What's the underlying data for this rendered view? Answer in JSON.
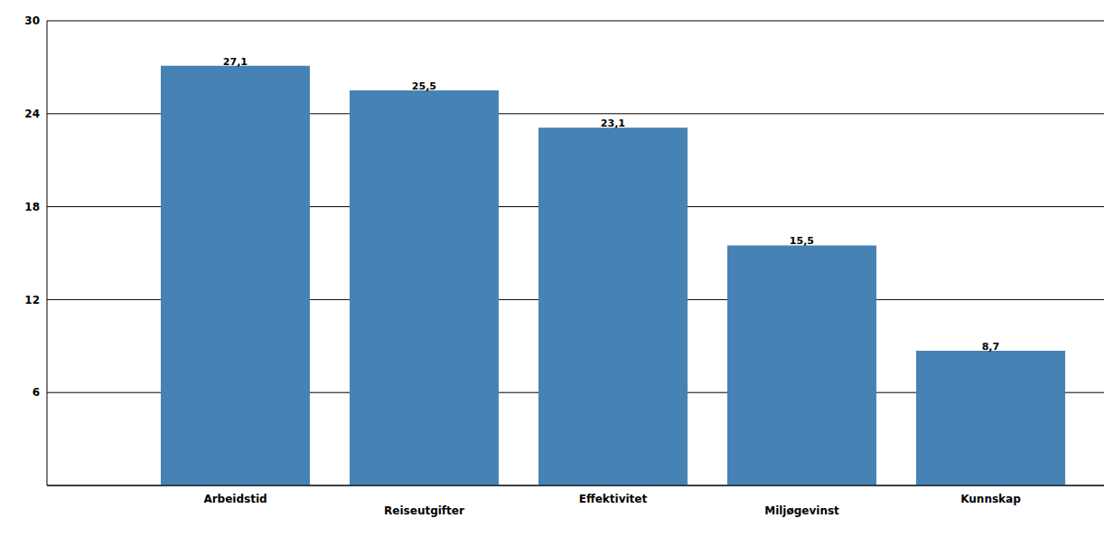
{
  "chart_data": {
    "type": "bar",
    "categories": [
      "Arbeidstid",
      "Reiseutgifter",
      "Effektivitet",
      "Miljøgevinst",
      "Kunnskap"
    ],
    "values": [
      27.1,
      25.5,
      23.1,
      15.5,
      8.7
    ],
    "value_labels": [
      "27,1",
      "25,5",
      "23,1",
      "15,5",
      "8,7"
    ],
    "data_labels": true,
    "color": "#4682b4",
    "ylim": [
      0,
      30
    ],
    "yticks": [
      6,
      12,
      18,
      24,
      30
    ],
    "grid": true
  }
}
